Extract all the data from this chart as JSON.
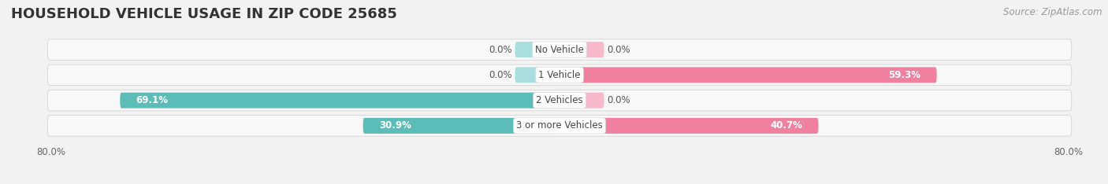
{
  "title": "HOUSEHOLD VEHICLE USAGE IN ZIP CODE 25685",
  "source": "Source: ZipAtlas.com",
  "categories": [
    "No Vehicle",
    "1 Vehicle",
    "2 Vehicles",
    "3 or more Vehicles"
  ],
  "owner_values": [
    0.0,
    0.0,
    69.1,
    30.9
  ],
  "renter_values": [
    0.0,
    59.3,
    0.0,
    40.7
  ],
  "owner_color": "#5bbcb8",
  "renter_color": "#f080a0",
  "owner_color_light": "#a8dedd",
  "renter_color_light": "#f8b8cc",
  "background_color": "#f2f2f2",
  "bar_bg_color": "#e8e8e8",
  "row_bg_color": "#f8f8f8",
  "xlim": 80.0,
  "stub_size": 7.0,
  "title_fontsize": 13,
  "source_fontsize": 8.5,
  "label_fontsize": 8.5,
  "cat_fontsize": 8.5,
  "tick_fontsize": 8.5
}
